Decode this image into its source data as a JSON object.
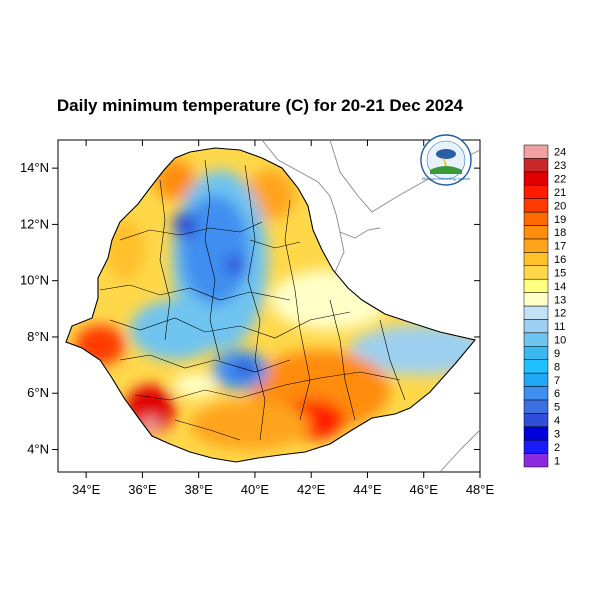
{
  "title": "Daily minimum temperature (C) for 20-21 Dec 2024",
  "map": {
    "lon_range": [
      33,
      48
    ],
    "lat_range": [
      3.2,
      15
    ],
    "x_ticks": [
      "34°E",
      "36°E",
      "38°E",
      "40°E",
      "42°E",
      "44°E",
      "46°E",
      "48°E"
    ],
    "x_tick_values": [
      34,
      36,
      38,
      40,
      42,
      44,
      46,
      48
    ],
    "y_ticks": [
      "14°N",
      "12°N",
      "10°N",
      "8°N",
      "6°N",
      "4°N"
    ],
    "y_tick_values": [
      14,
      12,
      10,
      8,
      6,
      4
    ]
  },
  "colorbar": {
    "labels": [
      "1",
      "2",
      "3",
      "4",
      "5",
      "6",
      "7",
      "8",
      "9",
      "10",
      "11",
      "12",
      "13",
      "14",
      "15",
      "16",
      "17",
      "18",
      "19",
      "20",
      "21",
      "22",
      "23",
      "24"
    ],
    "colors": [
      "#8a2be2",
      "#1a1aff",
      "#0000dd",
      "#2f4fd8",
      "#3d6fe0",
      "#3f8ff0",
      "#1fa8f5",
      "#20c0ff",
      "#3cb8f0",
      "#6fc4f0",
      "#9dd0f0",
      "#c4e2f5",
      "#ffffc8",
      "#ffff80",
      "#ffd84a",
      "#ffc02a",
      "#ffa41a",
      "#ff8c0a",
      "#ff6a00",
      "#ff3a00",
      "#ff1a00",
      "#e00000",
      "#c8282a",
      "#f0a0a0"
    ]
  },
  "logo": {
    "label": "Ethiopian Meteorology Institute"
  }
}
